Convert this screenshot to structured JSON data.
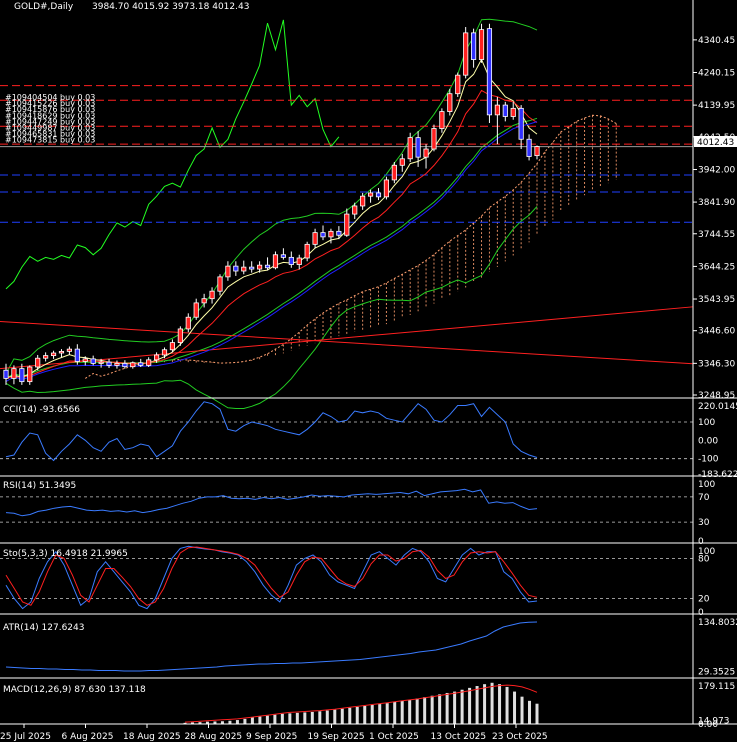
{
  "chart_data": {
    "type": "candlestick",
    "symbol_title": "GOLD#,Daily",
    "ohlc_header": "3984.70 4015.92 3973.18 4012.43",
    "current_price": "4012.43",
    "colors": {
      "background": "#000000",
      "bull": "#ff2020",
      "bear": "#3030ff",
      "grid": "#ffffff",
      "ma_fast": "#ffffaa",
      "ma_mid": "#ff2020",
      "ma_slow": "#2020ff",
      "bands": "#22cc22",
      "chikou": "#22ff22",
      "cloud": "#ffa070",
      "indicator": "#3a7bff",
      "signal": "#ff2020",
      "macd_hist": "#e0e0e0",
      "price_tag_bg": "#ffffff",
      "price_tag_text": "#000000"
    },
    "x_axis_labels": [
      "25 Jul 2025",
      "6 Aug 2025",
      "18 Aug 2025",
      "28 Aug 2025",
      "9 Sep 2025",
      "19 Sep 2025",
      "1 Oct 2025",
      "13 Oct 2025",
      "23 Oct 2025"
    ],
    "price_axis": {
      "ylim": [
        3248.95,
        4420
      ],
      "tick_labels": [
        "4340.45",
        "4240.15",
        "4139.95",
        "4042.50",
        "3942.00",
        "3841.90",
        "3744.55",
        "3644.25",
        "3543.95",
        "3446.60",
        "3346.30",
        "3248.95"
      ],
      "tick_values": [
        4340.45,
        4240.15,
        4139.95,
        4042.5,
        3942.0,
        3841.9,
        3744.55,
        3644.25,
        3543.95,
        3446.6,
        3346.3,
        3248.95
      ]
    },
    "orders": [
      "#109404504 buy 0.03",
      "#109415226 buy 0.03",
      "#109415876 buy 0.03",
      "#109418629 buy 0.03",
      "#109447249 buy 0.03",
      "#109449987 buy 0.03",
      "#109465831 buy 0.03",
      "#109473815 buy 0.03"
    ],
    "order_levels": [
      4200,
      4155,
      4075,
      4020
    ],
    "blue_levels": [
      3925,
      3873,
      3780
    ],
    "candles": [
      {
        "o": 3325,
        "h": 3345,
        "l": 3280,
        "c": 3300
      },
      {
        "o": 3300,
        "h": 3340,
        "l": 3282,
        "c": 3330
      },
      {
        "o": 3330,
        "h": 3345,
        "l": 3280,
        "c": 3290
      },
      {
        "o": 3290,
        "h": 3340,
        "l": 3280,
        "c": 3335
      },
      {
        "o": 3335,
        "h": 3372,
        "l": 3325,
        "c": 3362
      },
      {
        "o": 3362,
        "h": 3380,
        "l": 3352,
        "c": 3370
      },
      {
        "o": 3370,
        "h": 3385,
        "l": 3360,
        "c": 3378
      },
      {
        "o": 3378,
        "h": 3390,
        "l": 3365,
        "c": 3383
      },
      {
        "o": 3383,
        "h": 3398,
        "l": 3372,
        "c": 3390
      },
      {
        "o": 3390,
        "h": 3405,
        "l": 3342,
        "c": 3352
      },
      {
        "o": 3352,
        "h": 3368,
        "l": 3340,
        "c": 3360
      },
      {
        "o": 3360,
        "h": 3370,
        "l": 3340,
        "c": 3346
      },
      {
        "o": 3346,
        "h": 3360,
        "l": 3333,
        "c": 3350
      },
      {
        "o": 3350,
        "h": 3360,
        "l": 3332,
        "c": 3340
      },
      {
        "o": 3340,
        "h": 3355,
        "l": 3330,
        "c": 3346
      },
      {
        "o": 3346,
        "h": 3356,
        "l": 3330,
        "c": 3336
      },
      {
        "o": 3336,
        "h": 3352,
        "l": 3330,
        "c": 3348
      },
      {
        "o": 3348,
        "h": 3360,
        "l": 3335,
        "c": 3340
      },
      {
        "o": 3340,
        "h": 3365,
        "l": 3335,
        "c": 3357
      },
      {
        "o": 3357,
        "h": 3380,
        "l": 3348,
        "c": 3372
      },
      {
        "o": 3372,
        "h": 3395,
        "l": 3362,
        "c": 3388
      },
      {
        "o": 3388,
        "h": 3420,
        "l": 3380,
        "c": 3410
      },
      {
        "o": 3410,
        "h": 3460,
        "l": 3400,
        "c": 3452
      },
      {
        "o": 3452,
        "h": 3500,
        "l": 3442,
        "c": 3488
      },
      {
        "o": 3488,
        "h": 3545,
        "l": 3480,
        "c": 3532
      },
      {
        "o": 3532,
        "h": 3560,
        "l": 3518,
        "c": 3545
      },
      {
        "o": 3545,
        "h": 3580,
        "l": 3530,
        "c": 3568
      },
      {
        "o": 3568,
        "h": 3620,
        "l": 3555,
        "c": 3612
      },
      {
        "o": 3612,
        "h": 3660,
        "l": 3600,
        "c": 3645
      },
      {
        "o": 3645,
        "h": 3660,
        "l": 3615,
        "c": 3630
      },
      {
        "o": 3630,
        "h": 3662,
        "l": 3620,
        "c": 3642
      },
      {
        "o": 3642,
        "h": 3660,
        "l": 3625,
        "c": 3636
      },
      {
        "o": 3636,
        "h": 3660,
        "l": 3625,
        "c": 3648
      },
      {
        "o": 3648,
        "h": 3672,
        "l": 3632,
        "c": 3640
      },
      {
        "o": 3640,
        "h": 3690,
        "l": 3635,
        "c": 3680
      },
      {
        "o": 3680,
        "h": 3700,
        "l": 3665,
        "c": 3672
      },
      {
        "o": 3672,
        "h": 3690,
        "l": 3640,
        "c": 3650
      },
      {
        "o": 3650,
        "h": 3680,
        "l": 3635,
        "c": 3670
      },
      {
        "o": 3670,
        "h": 3720,
        "l": 3660,
        "c": 3712
      },
      {
        "o": 3712,
        "h": 3760,
        "l": 3700,
        "c": 3748
      },
      {
        "o": 3748,
        "h": 3770,
        "l": 3725,
        "c": 3735
      },
      {
        "o": 3735,
        "h": 3760,
        "l": 3715,
        "c": 3752
      },
      {
        "o": 3752,
        "h": 3768,
        "l": 3728,
        "c": 3740
      },
      {
        "o": 3740,
        "h": 3822,
        "l": 3735,
        "c": 3805
      },
      {
        "o": 3805,
        "h": 3840,
        "l": 3790,
        "c": 3830
      },
      {
        "o": 3830,
        "h": 3870,
        "l": 3818,
        "c": 3860
      },
      {
        "o": 3860,
        "h": 3880,
        "l": 3840,
        "c": 3870
      },
      {
        "o": 3870,
        "h": 3885,
        "l": 3848,
        "c": 3858
      },
      {
        "o": 3858,
        "h": 3920,
        "l": 3850,
        "c": 3910
      },
      {
        "o": 3910,
        "h": 3965,
        "l": 3900,
        "c": 3955
      },
      {
        "o": 3955,
        "h": 3990,
        "l": 3935,
        "c": 3975
      },
      {
        "o": 3975,
        "h": 4055,
        "l": 3965,
        "c": 4040
      },
      {
        "o": 4040,
        "h": 4060,
        "l": 3950,
        "c": 3980
      },
      {
        "o": 3980,
        "h": 4020,
        "l": 3945,
        "c": 4005
      },
      {
        "o": 4005,
        "h": 4080,
        "l": 3998,
        "c": 4068
      },
      {
        "o": 4068,
        "h": 4130,
        "l": 4055,
        "c": 4120
      },
      {
        "o": 4120,
        "h": 4190,
        "l": 4108,
        "c": 4175
      },
      {
        "o": 4175,
        "h": 4240,
        "l": 4165,
        "c": 4232
      },
      {
        "o": 4232,
        "h": 4380,
        "l": 4222,
        "c": 4362
      },
      {
        "o": 4362,
        "h": 4375,
        "l": 4255,
        "c": 4280
      },
      {
        "o": 4280,
        "h": 4390,
        "l": 4270,
        "c": 4372
      },
      {
        "o": 4375,
        "h": 4390,
        "l": 4085,
        "c": 4110
      },
      {
        "o": 4110,
        "h": 4165,
        "l": 4020,
        "c": 4140
      },
      {
        "o": 4140,
        "h": 4150,
        "l": 4090,
        "c": 4105
      },
      {
        "o": 4105,
        "h": 4150,
        "l": 4095,
        "c": 4130
      },
      {
        "o": 4130,
        "h": 4140,
        "l": 4005,
        "c": 4035
      },
      {
        "o": 4035,
        "h": 4050,
        "l": 3970,
        "c": 3982
      },
      {
        "o": 3984.7,
        "h": 4015.92,
        "l": 3973.18,
        "c": 4012.43
      }
    ],
    "cci": {
      "label": "CCI(14) -93.6566",
      "ticks": [
        "220.0145",
        "100",
        "0.00",
        "-100",
        "-183.6227"
      ],
      "range": [
        -183.6227,
        220.0145
      ],
      "values": [
        -90,
        -80,
        -10,
        40,
        30,
        -70,
        -110,
        -60,
        -20,
        30,
        0,
        -40,
        -60,
        -10,
        10,
        -50,
        -40,
        -20,
        -30,
        -90,
        -60,
        -30,
        50,
        100,
        160,
        210,
        200,
        170,
        60,
        50,
        80,
        100,
        90,
        80,
        60,
        50,
        40,
        30,
        60,
        100,
        150,
        130,
        100,
        110,
        160,
        150,
        160,
        150,
        120,
        110,
        100,
        150,
        200,
        170,
        110,
        100,
        140,
        190,
        190,
        200,
        130,
        180,
        140,
        100,
        -20,
        -60,
        -80,
        -93.66
      ]
    },
    "rsi": {
      "label": "RSI(14) 51.3495",
      "ticks": [
        "100",
        "70",
        "30",
        "0"
      ],
      "range": [
        0,
        100
      ],
      "values": [
        45,
        44,
        40,
        42,
        47,
        49,
        52,
        54,
        55,
        52,
        49,
        48,
        49,
        47,
        48,
        46,
        48,
        45,
        47,
        50,
        52,
        56,
        60,
        63,
        68,
        70,
        70,
        72,
        68,
        67,
        68,
        66,
        69,
        67,
        69,
        66,
        68,
        70,
        73,
        71,
        72,
        71,
        70,
        73,
        74,
        75,
        74,
        75,
        76,
        77,
        75,
        79,
        72,
        75,
        78,
        79,
        80,
        82,
        78,
        81,
        60,
        62,
        60,
        61,
        55,
        50,
        51.35
      ]
    },
    "stoch": {
      "label": "Sto(5,3,3) 16.4918 21.9965",
      "ticks": [
        "100",
        "80",
        "20",
        "0"
      ],
      "range": [
        0,
        100
      ],
      "k": [
        40,
        20,
        5,
        15,
        50,
        75,
        90,
        70,
        40,
        10,
        20,
        60,
        75,
        60,
        45,
        30,
        10,
        5,
        20,
        50,
        80,
        95,
        98,
        96,
        94,
        93,
        90,
        88,
        85,
        75,
        60,
        40,
        25,
        15,
        40,
        70,
        80,
        85,
        75,
        55,
        45,
        40,
        35,
        60,
        85,
        90,
        80,
        70,
        85,
        95,
        90,
        75,
        50,
        45,
        65,
        85,
        95,
        85,
        90,
        90,
        60,
        50,
        30,
        15,
        16.49
      ],
      "d": [
        55,
        35,
        15,
        10,
        30,
        60,
        85,
        80,
        55,
        25,
        15,
        40,
        65,
        65,
        52,
        38,
        20,
        10,
        15,
        35,
        65,
        88,
        96,
        97,
        95,
        93,
        91,
        89,
        86,
        80,
        70,
        52,
        35,
        22,
        30,
        55,
        75,
        82,
        80,
        65,
        50,
        42,
        38,
        50,
        72,
        85,
        85,
        76,
        80,
        90,
        92,
        82,
        62,
        50,
        55,
        75,
        88,
        90,
        88,
        90,
        75,
        58,
        40,
        25,
        22.0
      ]
    },
    "atr": {
      "label": "ATR(14) 127.6243",
      "ticks": [
        "134.8032",
        "29.3525"
      ],
      "range": [
        20,
        140
      ],
      "values": [
        38,
        37,
        36,
        35,
        35,
        34,
        34,
        33,
        33,
        32,
        32,
        31,
        31,
        31,
        30,
        30,
        30,
        31,
        31,
        32,
        33,
        34,
        35,
        36,
        37,
        38,
        40,
        41,
        42,
        43,
        44,
        44,
        45,
        45,
        46,
        46,
        47,
        48,
        49,
        50,
        51,
        52,
        53,
        55,
        57,
        59,
        61,
        63,
        65,
        68,
        70,
        72,
        76,
        80,
        84,
        90,
        95,
        100,
        110,
        118,
        122,
        126,
        127.6,
        128
      ]
    },
    "macd": {
      "label": "MACD(12,26,9) 87.630 137.118",
      "ticks": [
        "179.115",
        "14.973",
        "0.00"
      ],
      "range": [
        0,
        190
      ],
      "hist": [
        5,
        7,
        8,
        10,
        11,
        12,
        14,
        17,
        22,
        28,
        32,
        36,
        40,
        44,
        46,
        48,
        50,
        52,
        55,
        58,
        62,
        66,
        70,
        74,
        78,
        82,
        86,
        90,
        95,
        100,
        104,
        110,
        116,
        122,
        128,
        134,
        140,
        148,
        156,
        164,
        172,
        178,
        172,
        160,
        140,
        118,
        100,
        87.63
      ],
      "signal": [
        8,
        10,
        12,
        14,
        16,
        18,
        20,
        22,
        26,
        30,
        34,
        38,
        42,
        46,
        50,
        52,
        54,
        56,
        58,
        61,
        64,
        68,
        72,
        76,
        80,
        84,
        88,
        92,
        96,
        100,
        104,
        108,
        113,
        118,
        123,
        128,
        133,
        138,
        144,
        150,
        156,
        162,
        166,
        168,
        166,
        160,
        150,
        137.1
      ]
    }
  }
}
